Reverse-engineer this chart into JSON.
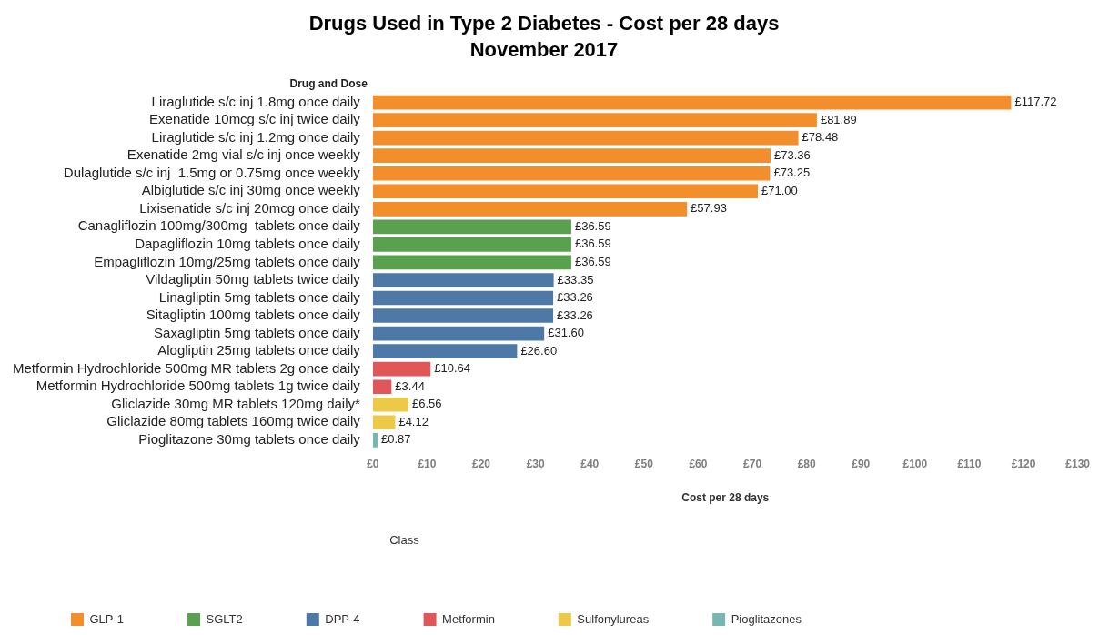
{
  "chart_data": {
    "type": "bar",
    "orientation": "horizontal",
    "stacked": true,
    "title": "Drugs Used in Type 2 Diabetes - Cost per 28 days",
    "subtitle": "November 2017",
    "ylabel": "Drug and Dose",
    "xlabel": "Cost per 28 days",
    "legend_title": "Class",
    "legend": "bottom left",
    "xlim": [
      0,
      130
    ],
    "xticks": [
      {
        "value": 0,
        "label": "£0"
      },
      {
        "value": 10,
        "label": "£10"
      },
      {
        "value": 20,
        "label": "£20"
      },
      {
        "value": 30,
        "label": "£30"
      },
      {
        "value": 40,
        "label": "£40"
      },
      {
        "value": 50,
        "label": "£50"
      },
      {
        "value": 60,
        "label": "£60"
      },
      {
        "value": 70,
        "label": "£70"
      },
      {
        "value": 80,
        "label": "£80"
      },
      {
        "value": 90,
        "label": "£90"
      },
      {
        "value": 100,
        "label": "£100"
      },
      {
        "value": 110,
        "label": "£110"
      },
      {
        "value": 120,
        "label": "£120"
      },
      {
        "value": 130,
        "label": "£130"
      }
    ],
    "categories": [
      "Liraglutide s/c inj 1.8mg once daily",
      "Exenatide 10mcg s/c inj twice daily",
      "Liraglutide s/c inj 1.2mg once daily",
      "Exenatide 2mg vial s/c inj once weekly",
      "Dulaglutide s/c inj  1.5mg or 0.75mg once weekly",
      "Albiglutide s/c inj 30mg once weekly",
      "Lixisenatide s/c inj 20mcg once daily",
      "Canagliflozin 100mg/300mg  tablets once daily",
      "Dapagliflozin 10mg tablets once daily",
      "Empagliflozin 10mg/25mg tablets once daily",
      "Vildagliptin 50mg tablets twice daily",
      "Linagliptin 5mg tablets once daily",
      "Sitagliptin 100mg tablets once daily",
      "Saxagliptin 5mg tablets once daily",
      "Alogliptin 25mg tablets once daily",
      "Metformin Hydrochloride 500mg MR tablets 2g once daily",
      "Metformin Hydrochloride 500mg tablets 1g twice daily",
      "Gliclazide 30mg MR tablets 120mg daily*",
      "Gliclazide 80mg tablets 160mg twice daily",
      "Pioglitazone 30mg tablets once daily"
    ],
    "series": [
      {
        "name": "GLP-1",
        "color": "#f28e2b",
        "values": [
          117.72,
          81.89,
          78.48,
          73.36,
          73.25,
          71.0,
          57.93,
          null,
          null,
          null,
          null,
          null,
          null,
          null,
          null,
          null,
          null,
          null,
          null,
          null
        ],
        "value_labels": [
          "£117.72",
          "£81.89",
          "£78.48",
          "£73.36",
          "£73.25",
          "£71.00",
          "£57.93",
          null,
          null,
          null,
          null,
          null,
          null,
          null,
          null,
          null,
          null,
          null,
          null,
          null
        ]
      },
      {
        "name": "SGLT2",
        "color": "#59a14f",
        "values": [
          null,
          null,
          null,
          null,
          null,
          null,
          null,
          36.59,
          36.59,
          36.59,
          null,
          null,
          null,
          null,
          null,
          null,
          null,
          null,
          null,
          null
        ],
        "value_labels": [
          null,
          null,
          null,
          null,
          null,
          null,
          null,
          "£36.59",
          "£36.59",
          "£36.59",
          null,
          null,
          null,
          null,
          null,
          null,
          null,
          null,
          null,
          null
        ]
      },
      {
        "name": "DPP-4",
        "color": "#4e79a7",
        "values": [
          null,
          null,
          null,
          null,
          null,
          null,
          null,
          null,
          null,
          null,
          33.35,
          33.26,
          33.26,
          31.6,
          26.6,
          null,
          null,
          null,
          null,
          null
        ],
        "value_labels": [
          null,
          null,
          null,
          null,
          null,
          null,
          null,
          null,
          null,
          null,
          "£33.35",
          "£33.26",
          "£33.26",
          "£31.60",
          "£26.60",
          null,
          null,
          null,
          null,
          null
        ]
      },
      {
        "name": "Metformin",
        "color": "#e15759",
        "values": [
          null,
          null,
          null,
          null,
          null,
          null,
          null,
          null,
          null,
          null,
          null,
          null,
          null,
          null,
          null,
          10.64,
          3.44,
          null,
          null,
          null
        ],
        "value_labels": [
          null,
          null,
          null,
          null,
          null,
          null,
          null,
          null,
          null,
          null,
          null,
          null,
          null,
          null,
          null,
          "£10.64",
          "£3.44",
          null,
          null,
          null
        ]
      },
      {
        "name": "Sulfonylureas",
        "color": "#edc948",
        "values": [
          null,
          null,
          null,
          null,
          null,
          null,
          null,
          null,
          null,
          null,
          null,
          null,
          null,
          null,
          null,
          null,
          null,
          6.56,
          4.12,
          null
        ],
        "value_labels": [
          null,
          null,
          null,
          null,
          null,
          null,
          null,
          null,
          null,
          null,
          null,
          null,
          null,
          null,
          null,
          null,
          null,
          "£6.56",
          "£4.12",
          null
        ]
      },
      {
        "name": "Pioglitazones",
        "color": "#76b7b2",
        "values": [
          null,
          null,
          null,
          null,
          null,
          null,
          null,
          null,
          null,
          null,
          null,
          null,
          null,
          null,
          null,
          null,
          null,
          null,
          null,
          0.87
        ],
        "value_labels": [
          null,
          null,
          null,
          null,
          null,
          null,
          null,
          null,
          null,
          null,
          null,
          null,
          null,
          null,
          null,
          null,
          null,
          null,
          null,
          "£0.87"
        ]
      }
    ]
  }
}
